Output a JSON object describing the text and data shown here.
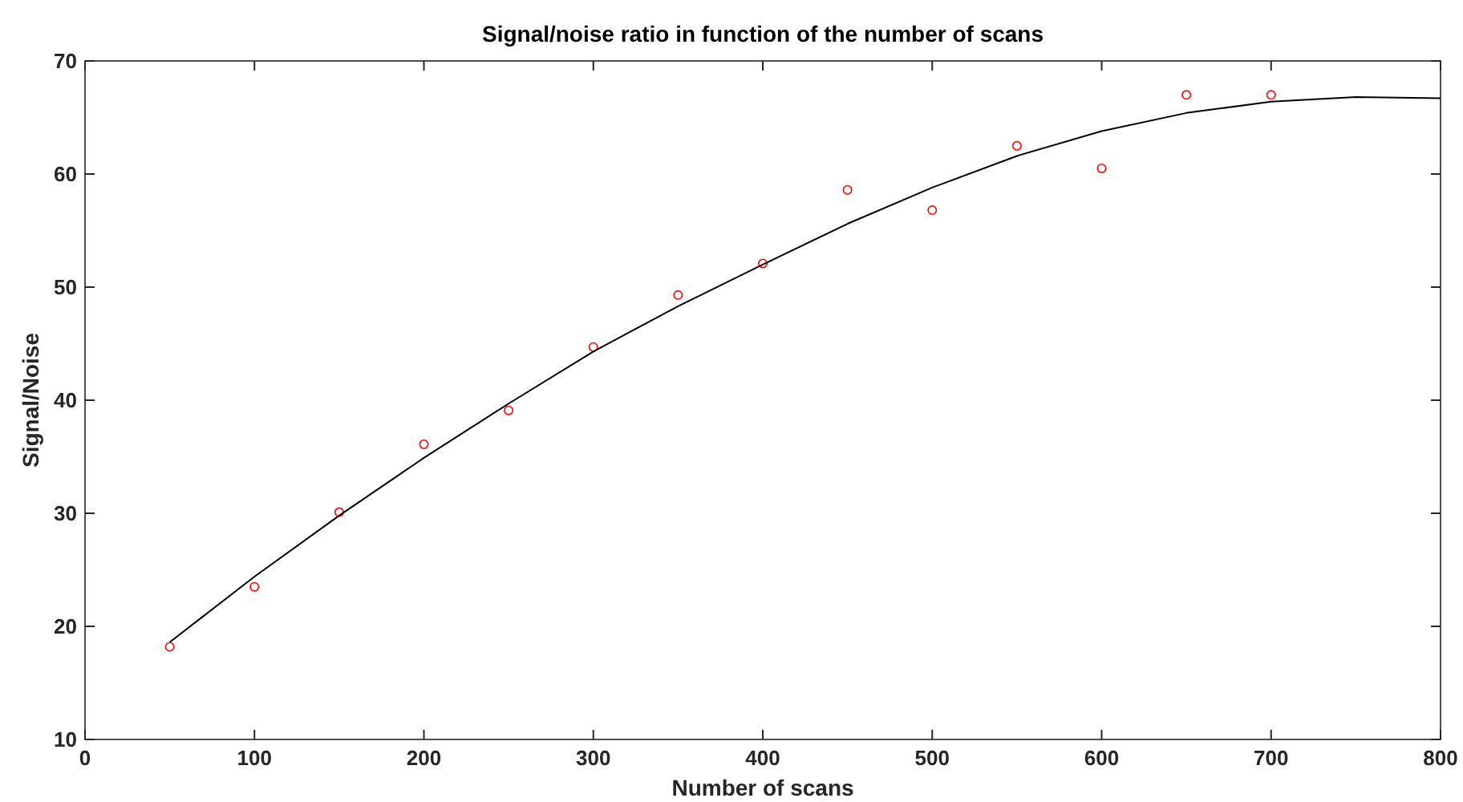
{
  "chart_data": {
    "type": "scatter",
    "title": "Signal/noise ratio in function of the number of scans",
    "xlabel": "Number of scans",
    "ylabel": "Signal/Noise",
    "xlim": [
      0,
      800
    ],
    "xticks": [
      0,
      100,
      200,
      300,
      400,
      500,
      600,
      700,
      800
    ],
    "ylim": [
      10,
      70
    ],
    "yticks": [
      10,
      20,
      30,
      40,
      50,
      60,
      70
    ],
    "grid": false,
    "series": [
      {
        "marker": "circle",
        "color": "#ff0000",
        "x": [
          50,
          100,
          150,
          200,
          250,
          300,
          350,
          400,
          450,
          500,
          550,
          600,
          650,
          700
        ],
        "values": [
          18.2,
          23.5,
          30.1,
          36.1,
          39.1,
          44.7,
          49.3,
          52.1,
          58.6,
          56.8,
          62.5,
          60.5,
          67,
          67
        ]
      },
      {
        "type": "line",
        "marker": "none",
        "line_style": "solid",
        "color": "#000000",
        "x": [
          50,
          100,
          150,
          200,
          250,
          300,
          350,
          400,
          450,
          500,
          550,
          600,
          650,
          700,
          750,
          800
        ],
        "values": [
          18.6,
          24.4,
          29.8,
          34.9,
          39.7,
          44.3,
          48.3,
          52,
          55.6,
          58.8,
          61.6,
          63.8,
          65.4,
          66.4,
          66.8,
          66.7
        ]
      }
    ]
  }
}
